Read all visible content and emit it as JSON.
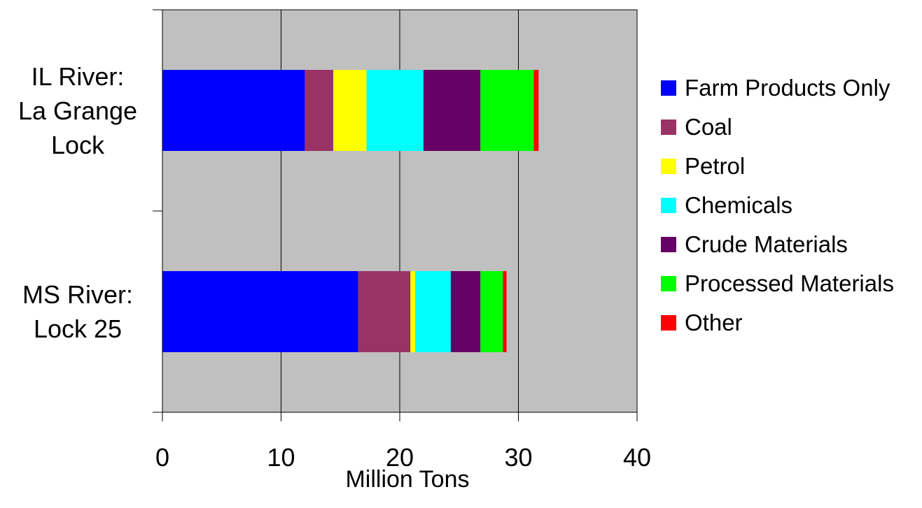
{
  "chart_data": {
    "type": "bar",
    "orientation": "horizontal",
    "stacked": true,
    "categories": [
      [
        "IL River:",
        "La Grange",
        "Lock"
      ],
      [
        "MS River:",
        "Lock 25"
      ]
    ],
    "series": [
      {
        "name": "Farm Products Only",
        "color": "#0000ff",
        "values": [
          12.0,
          16.5
        ]
      },
      {
        "name": "Coal",
        "color": "#993366",
        "values": [
          2.4,
          4.4
        ]
      },
      {
        "name": "Petrol",
        "color": "#ffff00",
        "values": [
          2.8,
          0.4
        ]
      },
      {
        "name": "Chemicals",
        "color": "#00ffff",
        "values": [
          4.8,
          3.0
        ]
      },
      {
        "name": "Crude Materials",
        "color": "#660066",
        "values": [
          4.8,
          2.5
        ]
      },
      {
        "name": "Processed Materials",
        "color": "#00ff00",
        "values": [
          4.5,
          1.9
        ]
      },
      {
        "name": "Other",
        "color": "#ff0000",
        "values": [
          0.4,
          0.3
        ]
      }
    ],
    "xlim": [
      0,
      40
    ],
    "xticks": [
      "0",
      "10",
      "20",
      "30",
      "40"
    ],
    "xlabel": "Million Tons",
    "ylabel": "",
    "title": "",
    "grid": "vertical",
    "plot_background": "#c0c0c0",
    "legend_position": "right"
  }
}
